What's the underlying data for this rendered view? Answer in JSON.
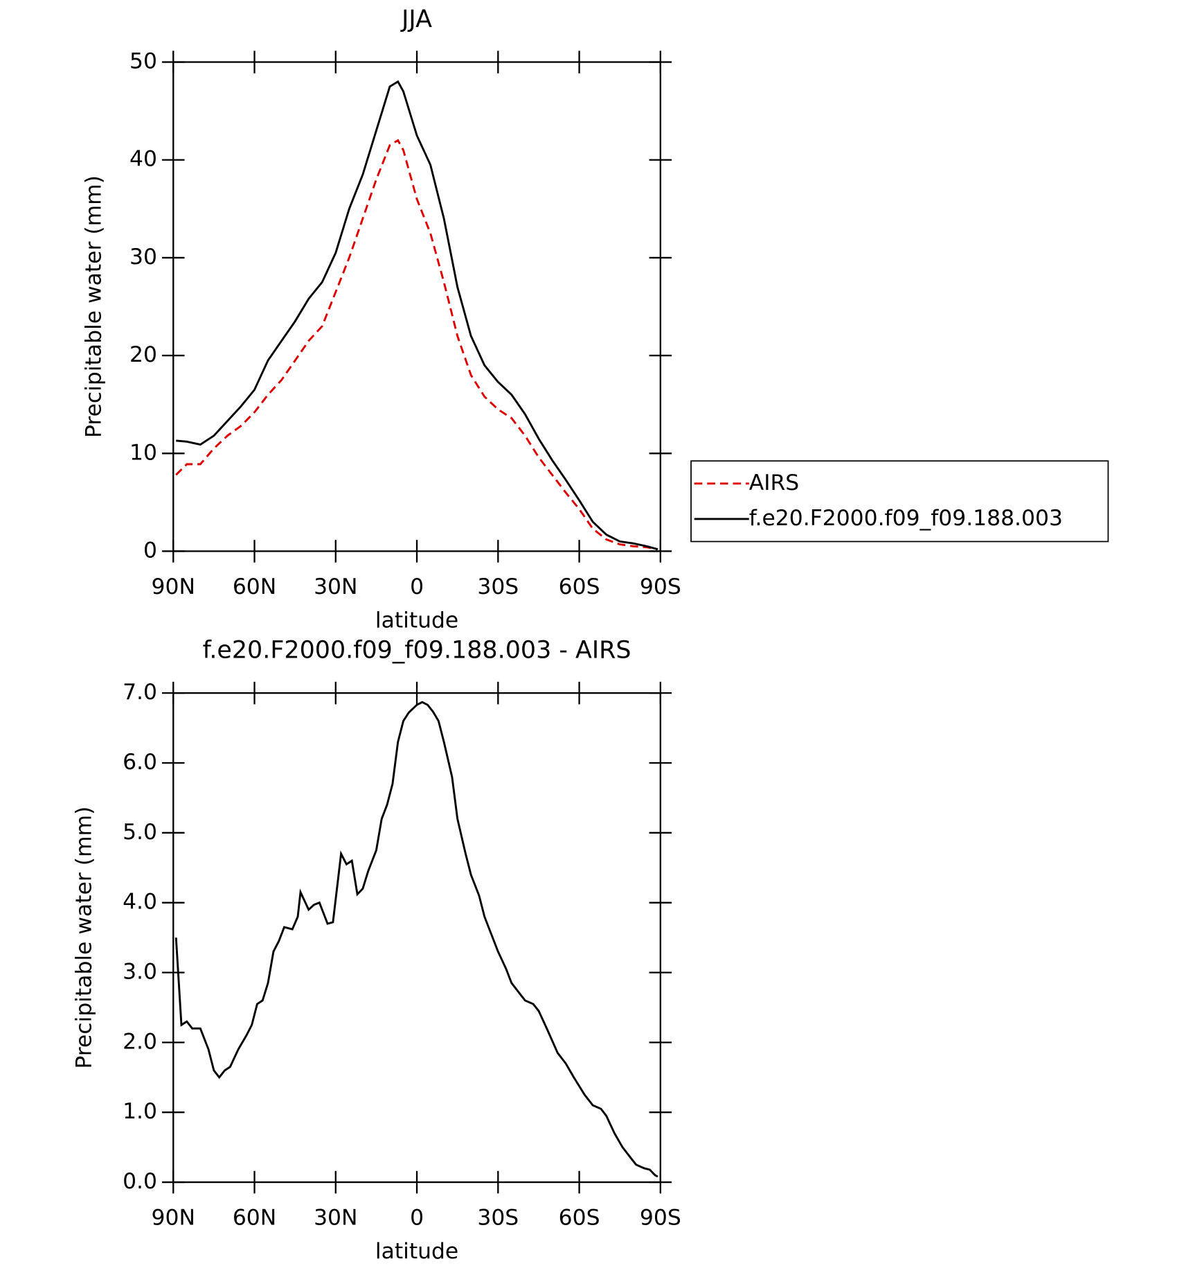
{
  "chart_data": [
    {
      "type": "line",
      "title": "JJA",
      "xlabel": "latitude",
      "ylabel": "Precipitable water (mm)",
      "x": [
        89,
        85,
        80,
        75,
        70,
        65,
        60,
        55,
        50,
        45,
        40,
        35,
        30,
        25,
        20,
        15,
        10,
        7,
        5,
        0,
        -5,
        -10,
        -15,
        -20,
        -25,
        -30,
        -35,
        -40,
        -45,
        -50,
        -55,
        -60,
        -65,
        -70,
        -75,
        -80,
        -85,
        -89
      ],
      "series": [
        {
          "name": "AIRS",
          "color": "#e00000",
          "linestyle": "dashed",
          "values": [
            7.8,
            8.9,
            8.9,
            10.5,
            11.8,
            12.8,
            14.2,
            16,
            17.5,
            19.5,
            21.5,
            23,
            26.5,
            30,
            34,
            38,
            41.5,
            42,
            41,
            36,
            32.5,
            27.5,
            22,
            18,
            15.8,
            14.5,
            13.6,
            11.8,
            9.6,
            7.8,
            6.0,
            4.3,
            2.3,
            1.2,
            0.7,
            0.5,
            0.4,
            0.2
          ]
        },
        {
          "name": "f.e20.F2000.f09_f09.188.003",
          "color": "#000000",
          "linestyle": "solid",
          "values": [
            11.3,
            11.2,
            10.9,
            11.8,
            13.3,
            14.8,
            16.5,
            19.5,
            21.5,
            23.5,
            25.8,
            27.5,
            30.5,
            35,
            38.5,
            43,
            47.5,
            48,
            47,
            42.5,
            39.5,
            34,
            27,
            22,
            19,
            17.3,
            16,
            14,
            11.5,
            9.3,
            7.3,
            5.2,
            3.0,
            1.7,
            1.0,
            0.8,
            0.5,
            0.2
          ]
        }
      ],
      "xlim": [
        90,
        -90
      ],
      "xticks": [
        {
          "value": 90,
          "label": "90N"
        },
        {
          "value": 60,
          "label": "60N"
        },
        {
          "value": 30,
          "label": "30N"
        },
        0,
        {
          "value": -30,
          "label": "30S"
        },
        {
          "value": -60,
          "label": "60S"
        },
        {
          "value": -90,
          "label": "90S"
        }
      ],
      "ylim": [
        0,
        50
      ],
      "yticks": [
        0,
        10,
        20,
        30,
        40,
        50
      ],
      "legend": "right"
    },
    {
      "type": "line",
      "title": "f.e20.F2000.f09_f09.188.003 - AIRS",
      "xlabel": "latitude",
      "ylabel": "Precipitable water (mm)",
      "x": [
        89,
        87,
        85,
        83,
        80,
        77,
        75,
        73,
        71,
        69,
        66,
        63,
        61,
        59,
        57,
        55,
        53,
        51,
        49,
        46,
        44,
        43,
        40,
        38,
        36,
        33,
        31,
        28,
        26,
        24,
        22,
        20,
        18,
        15,
        13,
        11,
        9,
        7,
        5,
        3,
        0,
        -2,
        -4,
        -6,
        -8,
        -10,
        -13,
        -15,
        -18,
        -20,
        -23,
        -25,
        -28,
        -30,
        -33,
        -35,
        -38,
        -40,
        -43,
        -45,
        -48,
        -52,
        -55,
        -58,
        -62,
        -65,
        -68,
        -70,
        -73,
        -76,
        -79,
        -81,
        -84,
        -86,
        -88,
        -89
      ],
      "series": [
        {
          "color": "#000000",
          "linestyle": "solid",
          "values": [
            3.5,
            2.25,
            2.3,
            2.2,
            2.2,
            1.9,
            1.6,
            1.5,
            1.6,
            1.65,
            1.9,
            2.1,
            2.25,
            2.55,
            2.6,
            2.85,
            3.3,
            3.45,
            3.65,
            3.62,
            3.8,
            4.15,
            3.9,
            3.97,
            4.0,
            3.7,
            3.72,
            4.7,
            4.55,
            4.6,
            4.12,
            4.2,
            4.45,
            4.75,
            5.2,
            5.4,
            5.7,
            6.3,
            6.6,
            6.72,
            6.83,
            6.87,
            6.83,
            6.73,
            6.6,
            6.3,
            5.8,
            5.2,
            4.7,
            4.4,
            4.1,
            3.8,
            3.5,
            3.3,
            3.05,
            2.85,
            2.7,
            2.6,
            2.55,
            2.45,
            2.2,
            1.85,
            1.7,
            1.5,
            1.25,
            1.1,
            1.05,
            0.95,
            0.7,
            0.5,
            0.35,
            0.25,
            0.2,
            0.18,
            0.1,
            0.08
          ]
        }
      ],
      "xlim": [
        90,
        -90
      ],
      "xticks": [
        {
          "value": 90,
          "label": "90N"
        },
        {
          "value": 60,
          "label": "60N"
        },
        {
          "value": 30,
          "label": "30N"
        },
        0,
        {
          "value": -30,
          "label": "30S"
        },
        {
          "value": -60,
          "label": "60S"
        },
        {
          "value": -90,
          "label": "90S"
        }
      ],
      "ylim": [
        0,
        7
      ],
      "yticks": [
        {
          "value": 0,
          "label": "0.0"
        },
        {
          "value": 1,
          "label": "1.0"
        },
        {
          "value": 2,
          "label": "2.0"
        },
        {
          "value": 3,
          "label": "3.0"
        },
        {
          "value": 4,
          "label": "4.0"
        },
        {
          "value": 5,
          "label": "5.0"
        },
        {
          "value": 6,
          "label": "6.0"
        },
        {
          "value": 7,
          "label": "7.0"
        }
      ]
    }
  ]
}
